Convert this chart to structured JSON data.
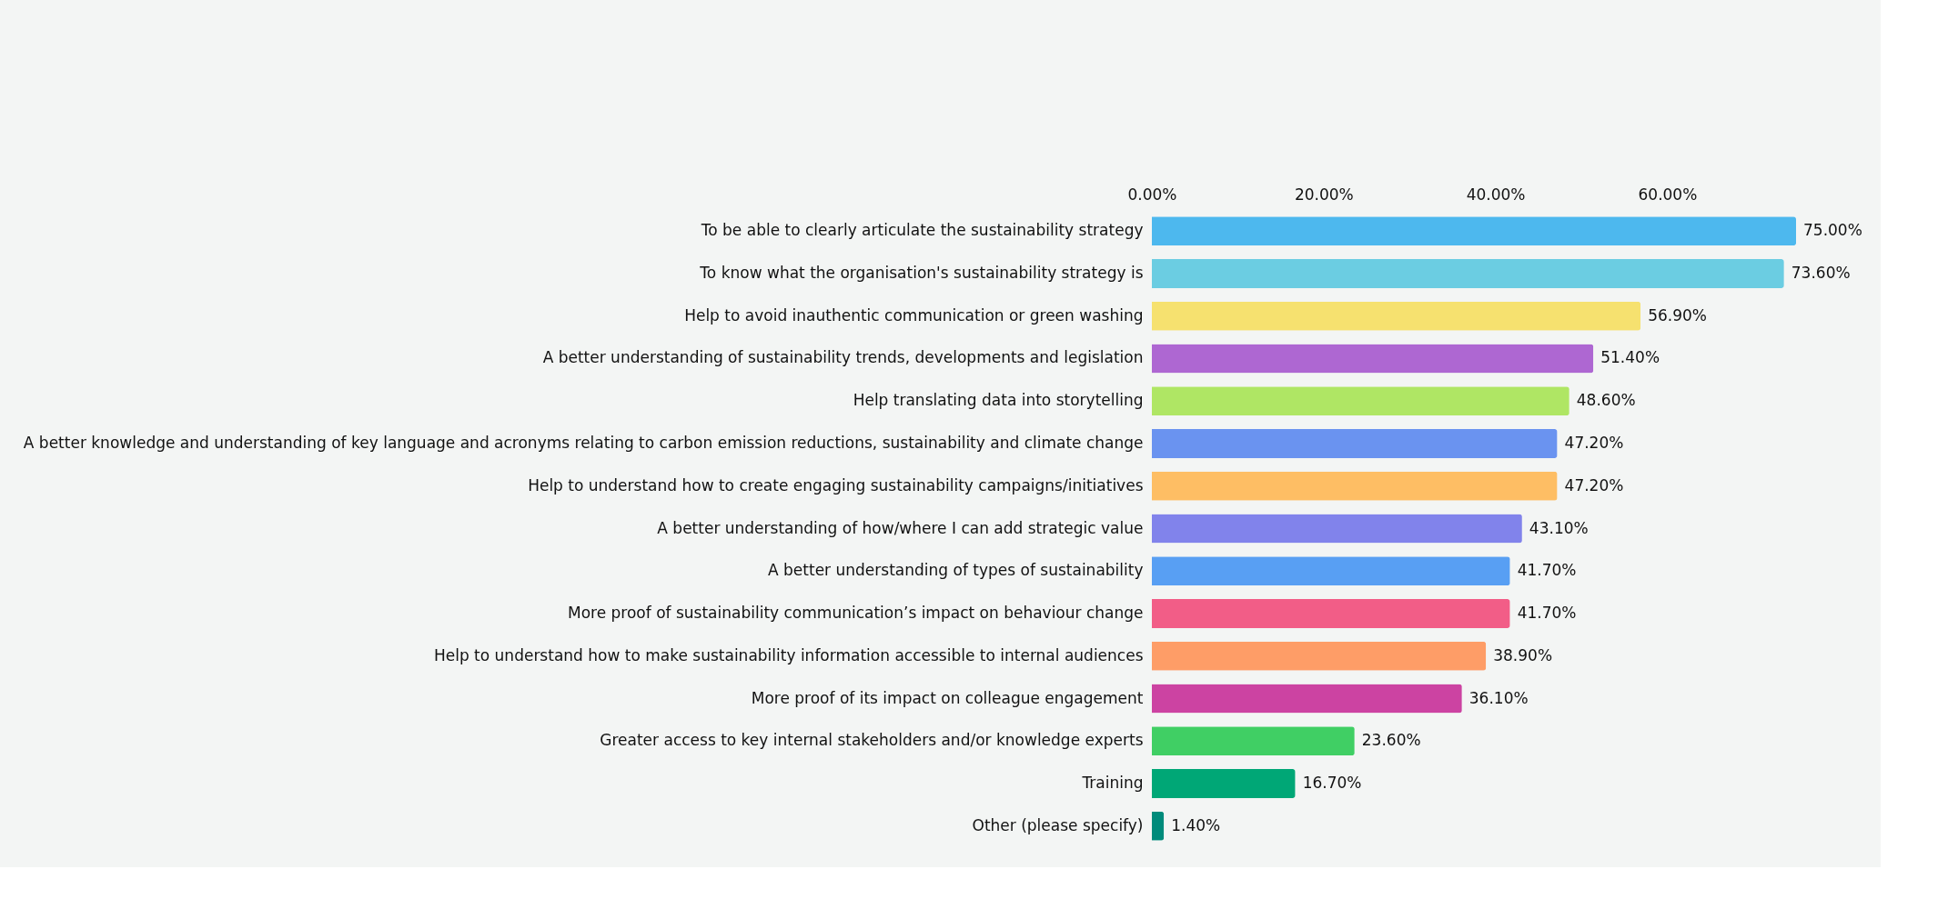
{
  "chart_data": {
    "type": "bar",
    "orientation": "horizontal",
    "categories": [
      "To be able to clearly articulate the sustainability strategy",
      "To know what the organisation's sustainability strategy is",
      "Help to avoid inauthentic communication or green washing",
      "A better understanding of sustainability trends, developments and legislation",
      "Help translating data into storytelling",
      "A better knowledge and understanding of key language and acronyms relating to carbon emission reductions, sustainability and climate change",
      "Help to understand how to create engaging sustainability campaigns/initiatives",
      "A better understanding of how/where I can add strategic value",
      "A better understanding of types of sustainability",
      "More proof of sustainability communication’s impact on behaviour change",
      "Help to understand how to make sustainability information accessible to internal audiences",
      "More proof of its impact on colleague engagement",
      "Greater access to key internal stakeholders and/or knowledge experts",
      "Training",
      "Other (please specify)"
    ],
    "values": [
      75.0,
      73.6,
      56.9,
      51.4,
      48.6,
      47.2,
      47.2,
      43.1,
      41.7,
      41.7,
      38.9,
      36.1,
      23.6,
      16.7,
      1.4
    ],
    "value_labels": [
      "75.00%",
      "73.60%",
      "56.90%",
      "51.40%",
      "48.60%",
      "47.20%",
      "47.20%",
      "43.10%",
      "41.70%",
      "41.70%",
      "38.90%",
      "36.10%",
      "23.60%",
      "16.70%",
      "1.40%"
    ],
    "colors": [
      "#4db8ee",
      "#6bcde2",
      "#f6e16f",
      "#ae67d2",
      "#afe664",
      "#6a93f0",
      "#febe64",
      "#8183eb",
      "#589ff3",
      "#f25d87",
      "#fe9d67",
      "#cc43a2",
      "#40cf64",
      "#00a776",
      "#008b7b"
    ],
    "xlim": [
      0,
      75
    ],
    "xticks": [
      {
        "value": 0,
        "label": "0.00%"
      },
      {
        "value": 20,
        "label": "20.00%"
      },
      {
        "value": 40,
        "label": "40.00%"
      },
      {
        "value": 60,
        "label": "60.00%"
      }
    ],
    "grid": false,
    "legend": false
  }
}
